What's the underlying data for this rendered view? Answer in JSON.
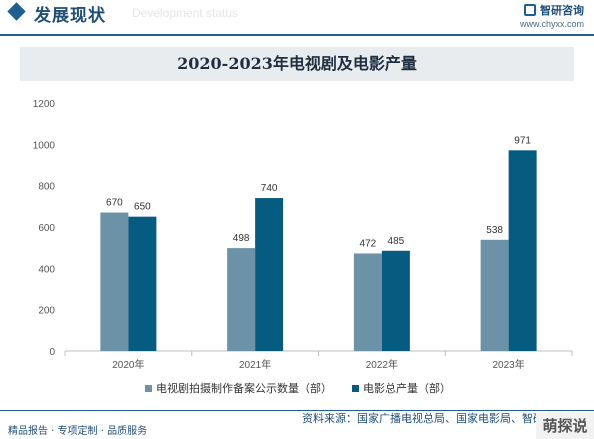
{
  "header": {
    "title": "发展现状",
    "ghost_text": "Development status",
    "brand_name": "智研咨询",
    "brand_url": "www.chyxx.com"
  },
  "colors": {
    "series1": "#6b92a7",
    "series2": "#065b80",
    "accent": "#1f5f8f"
  },
  "chart_data": {
    "type": "bar",
    "title": "2020-2023年电视剧及电影产量",
    "categories": [
      "2020年",
      "2021年",
      "2022年",
      "2023年"
    ],
    "series": [
      {
        "name": "电视剧拍摄制作备案公示数量（部）",
        "values": [
          670,
          498,
          472,
          538
        ]
      },
      {
        "name": "电影总产量（部）",
        "values": [
          650,
          740,
          485,
          971
        ]
      }
    ],
    "ylim": [
      0,
      1200
    ],
    "yticks": [
      0,
      200,
      400,
      600,
      800,
      1000,
      1200
    ],
    "grid": false,
    "legend_position": "bottom"
  },
  "footer": {
    "left": "精品报告 · 专项定制 · 品质服务",
    "right": "资料来源：国家广播电视总局、国家电影局、智研咨询整理",
    "corner": "萌探说"
  }
}
